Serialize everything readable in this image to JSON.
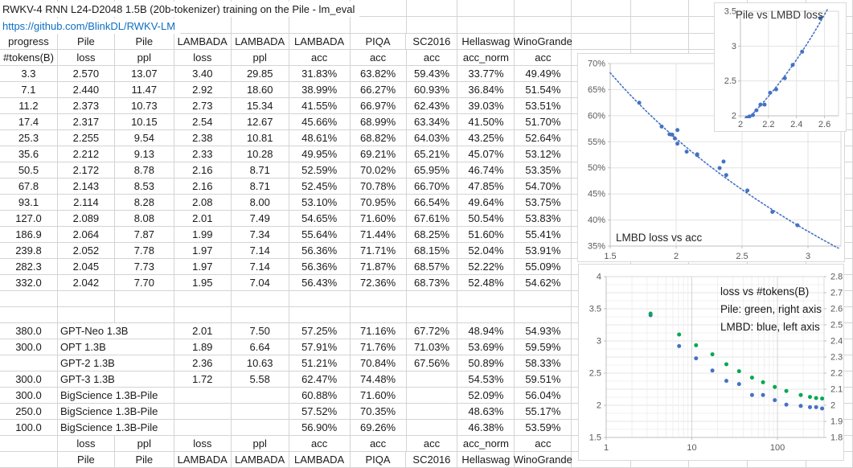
{
  "sheet": {
    "title": "RWKV-4 RNN L24-D2048 1.5B (20b-tokenizer) training on the Pile - lm_eval",
    "link": "https://github.com/BlinkDL/RWKV-LM",
    "header_row1": [
      "progress",
      "Pile",
      "Pile",
      "LAMBADA",
      "LAMBADA",
      "LAMBADA",
      "PIQA",
      "SC2016",
      "Hellaswag",
      "WinoGrande"
    ],
    "header_row2": [
      "#tokens(B)",
      "loss",
      "ppl",
      "loss",
      "ppl",
      "acc",
      "acc",
      "acc",
      "acc_norm",
      "acc"
    ],
    "rows": [
      [
        "3.3",
        "2.570",
        "13.07",
        "3.40",
        "29.85",
        "31.83%",
        "63.82%",
        "59.43%",
        "33.77%",
        "49.49%"
      ],
      [
        "7.1",
        "2.440",
        "11.47",
        "2.92",
        "18.60",
        "38.99%",
        "66.27%",
        "60.93%",
        "36.84%",
        "51.54%"
      ],
      [
        "11.2",
        "2.373",
        "10.73",
        "2.73",
        "15.34",
        "41.55%",
        "66.97%",
        "62.43%",
        "39.03%",
        "53.51%"
      ],
      [
        "17.4",
        "2.317",
        "10.15",
        "2.54",
        "12.67",
        "45.66%",
        "68.99%",
        "63.34%",
        "41.50%",
        "51.70%"
      ],
      [
        "25.3",
        "2.255",
        "9.54",
        "2.38",
        "10.81",
        "48.61%",
        "68.82%",
        "64.03%",
        "43.25%",
        "52.64%"
      ],
      [
        "35.6",
        "2.212",
        "9.13",
        "2.33",
        "10.28",
        "49.95%",
        "69.21%",
        "65.21%",
        "45.07%",
        "53.12%"
      ],
      [
        "50.5",
        "2.172",
        "8.78",
        "2.16",
        "8.71",
        "52.59%",
        "70.02%",
        "65.95%",
        "46.74%",
        "53.35%"
      ],
      [
        "67.8",
        "2.143",
        "8.53",
        "2.16",
        "8.71",
        "52.45%",
        "70.78%",
        "66.70%",
        "47.85%",
        "54.70%"
      ],
      [
        "93.1",
        "2.114",
        "8.28",
        "2.08",
        "8.00",
        "53.10%",
        "70.95%",
        "66.54%",
        "49.64%",
        "53.75%"
      ],
      [
        "127.0",
        "2.089",
        "8.08",
        "2.01",
        "7.49",
        "54.65%",
        "71.60%",
        "67.61%",
        "50.54%",
        "53.83%"
      ],
      [
        "186.9",
        "2.064",
        "7.87",
        "1.99",
        "7.34",
        "55.64%",
        "71.44%",
        "68.25%",
        "51.60%",
        "55.41%"
      ],
      [
        "239.8",
        "2.052",
        "7.78",
        "1.97",
        "7.14",
        "56.36%",
        "71.71%",
        "68.15%",
        "52.04%",
        "53.91%"
      ],
      [
        "282.3",
        "2.045",
        "7.73",
        "1.97",
        "7.14",
        "56.36%",
        "71.87%",
        "68.57%",
        "52.22%",
        "55.09%"
      ],
      [
        "332.0",
        "2.042",
        "7.70",
        "1.95",
        "7.04",
        "56.43%",
        "72.36%",
        "68.73%",
        "52.48%",
        "54.62%"
      ]
    ],
    "comparison_rows": [
      [
        "380.0",
        "GPT-Neo 1.3B",
        "",
        "2.01",
        "7.50",
        "57.25%",
        "71.16%",
        "67.72%",
        "48.94%",
        "54.93%"
      ],
      [
        "300.0",
        "OPT 1.3B",
        "",
        "1.89",
        "6.64",
        "57.91%",
        "71.76%",
        "71.03%",
        "53.69%",
        "59.59%"
      ],
      [
        "",
        "GPT-2 1.3B",
        "",
        "2.36",
        "10.63",
        "51.21%",
        "70.84%",
        "67.56%",
        "50.89%",
        "58.33%"
      ],
      [
        "300.0",
        "GPT-3 1.3B",
        "",
        "1.72",
        "5.58",
        "62.47%",
        "74.48%",
        "",
        "54.53%",
        "59.51%"
      ],
      [
        "300.0",
        "BigScience 1.3B-Pile",
        "",
        "",
        "",
        "60.88%",
        "71.60%",
        "",
        "52.09%",
        "56.04%"
      ],
      [
        "250.0",
        "BigScience 1.3B-Pile",
        "",
        "",
        "",
        "57.52%",
        "70.35%",
        "",
        "48.63%",
        "55.17%"
      ],
      [
        "100.0",
        "BigScience 1.3B-Pile",
        "",
        "",
        "",
        "56.90%",
        "69.26%",
        "",
        "46.38%",
        "53.59%"
      ]
    ],
    "footer_row1": [
      "",
      "loss",
      "ppl",
      "loss",
      "ppl",
      "acc",
      "acc",
      "acc",
      "acc_norm",
      "acc"
    ],
    "footer_row2": [
      "",
      "Pile",
      "Pile",
      "LAMBADA",
      "LAMBADA",
      "LAMBADA",
      "PIQA",
      "SC2016",
      "Hellaswag",
      "WinoGrande"
    ]
  },
  "colors": {
    "link": "#0e6fc1",
    "point_blue": "#4472c4",
    "point_green": "#00a850",
    "axis_text": "#595959",
    "chart_gridline": "#e3e3e3",
    "chart_gridline_minor": "#f0f0f0",
    "chart_gridline_major": "#d6d6d6",
    "axis_line": "#bfbfbf",
    "chart_border": "#d9d9d9",
    "sheet_gridline": "#d4d4d4",
    "chart_text": "#333333"
  },
  "chart_data": [
    {
      "id": "pile-vs-lmbd-loss",
      "type": "scatter",
      "title": "Pile vs LMBD loss",
      "xlim": [
        2,
        2.7
      ],
      "ylim": [
        2,
        3.5
      ],
      "x_tick_values": [
        2,
        2.2,
        2.4,
        2.6
      ],
      "x_tick_labels": [
        "2",
        "2.2",
        "2.4",
        "2.6"
      ],
      "y_tick_values": [
        3.5,
        3,
        2.5,
        2
      ],
      "y_tick_labels": [
        "3.5",
        "3",
        "2.5",
        "2"
      ],
      "trendline": "exp",
      "points": [
        [
          2.57,
          3.4
        ],
        [
          2.44,
          2.92
        ],
        [
          2.373,
          2.73
        ],
        [
          2.317,
          2.54
        ],
        [
          2.255,
          2.38
        ],
        [
          2.212,
          2.33
        ],
        [
          2.172,
          2.16
        ],
        [
          2.143,
          2.16
        ],
        [
          2.114,
          2.08
        ],
        [
          2.089,
          2.01
        ],
        [
          2.064,
          1.99
        ],
        [
          2.052,
          1.97
        ],
        [
          2.045,
          1.97
        ],
        [
          2.042,
          1.95
        ]
      ]
    },
    {
      "id": "lmbd-loss-vs-acc",
      "type": "scatter",
      "title": "LMBD loss vs acc",
      "xlim": [
        1.5,
        3.25
      ],
      "ylim": [
        35,
        70
      ],
      "x_tick_values": [
        1.5,
        2,
        2.5,
        3
      ],
      "x_tick_labels": [
        "1.5",
        "2",
        "2.5",
        "3"
      ],
      "y_tick_values": [
        70,
        65,
        60,
        55,
        50,
        45,
        40,
        35
      ],
      "y_tick_labels": [
        "70%",
        "65%",
        "60%",
        "55%",
        "50%",
        "45%",
        "40%",
        "35%"
      ],
      "trendline": "log",
      "points": [
        [
          3.4,
          31.83
        ],
        [
          2.92,
          38.99
        ],
        [
          2.73,
          41.55
        ],
        [
          2.54,
          45.66
        ],
        [
          2.38,
          48.61
        ],
        [
          2.33,
          49.95
        ],
        [
          2.16,
          52.59
        ],
        [
          2.16,
          52.45
        ],
        [
          2.08,
          53.1
        ],
        [
          2.01,
          54.65
        ],
        [
          1.99,
          55.64
        ],
        [
          1.97,
          56.36
        ],
        [
          1.97,
          56.36
        ],
        [
          1.95,
          56.43
        ]
      ],
      "extra_points": [
        [
          2.01,
          57.25
        ],
        [
          1.89,
          57.91
        ],
        [
          2.36,
          51.21
        ],
        [
          1.72,
          62.47
        ]
      ]
    },
    {
      "id": "loss-vs-tokens",
      "type": "scatter",
      "legend_lines": [
        "loss vs #tokens(B)",
        "Pile: green, right axis",
        "LMBD: blue, left axis"
      ],
      "x_log": true,
      "xlim": [
        1,
        350
      ],
      "x_tick_values": [
        1,
        10,
        100
      ],
      "x_tick_labels": [
        "1",
        "10",
        "100"
      ],
      "left_ylim": [
        1.5,
        4
      ],
      "left_tick_values": [
        4,
        3.5,
        3,
        2.5,
        2,
        1.5
      ],
      "left_tick_labels": [
        "4",
        "3.5",
        "3",
        "2.5",
        "2",
        "1.5"
      ],
      "right_ylim": [
        1.8,
        2.8
      ],
      "right_tick_values": [
        2.8,
        2.7,
        2.6,
        2.5,
        2.4,
        2.3,
        2.2,
        2.1,
        2,
        1.9,
        1.8
      ],
      "right_tick_labels": [
        "2.8",
        "2.7",
        "2.6",
        "2.5",
        "2.4",
        "2.3",
        "2.2",
        "2.1",
        "2",
        "1.9",
        "1.8"
      ],
      "x": [
        3.3,
        7.1,
        11.2,
        17.4,
        25.3,
        35.6,
        50.5,
        67.8,
        93.1,
        127.0,
        186.9,
        239.8,
        282.3,
        332.0
      ],
      "series": [
        {
          "name": "LMBD",
          "axis": "left",
          "color_key": "point_blue",
          "y": [
            3.4,
            2.92,
            2.73,
            2.54,
            2.38,
            2.33,
            2.16,
            2.16,
            2.08,
            2.01,
            1.99,
            1.97,
            1.97,
            1.95
          ]
        },
        {
          "name": "Pile",
          "axis": "right",
          "color_key": "point_green",
          "y": [
            2.57,
            2.44,
            2.373,
            2.317,
            2.255,
            2.212,
            2.172,
            2.143,
            2.114,
            2.089,
            2.064,
            2.052,
            2.045,
            2.042
          ]
        }
      ]
    }
  ]
}
